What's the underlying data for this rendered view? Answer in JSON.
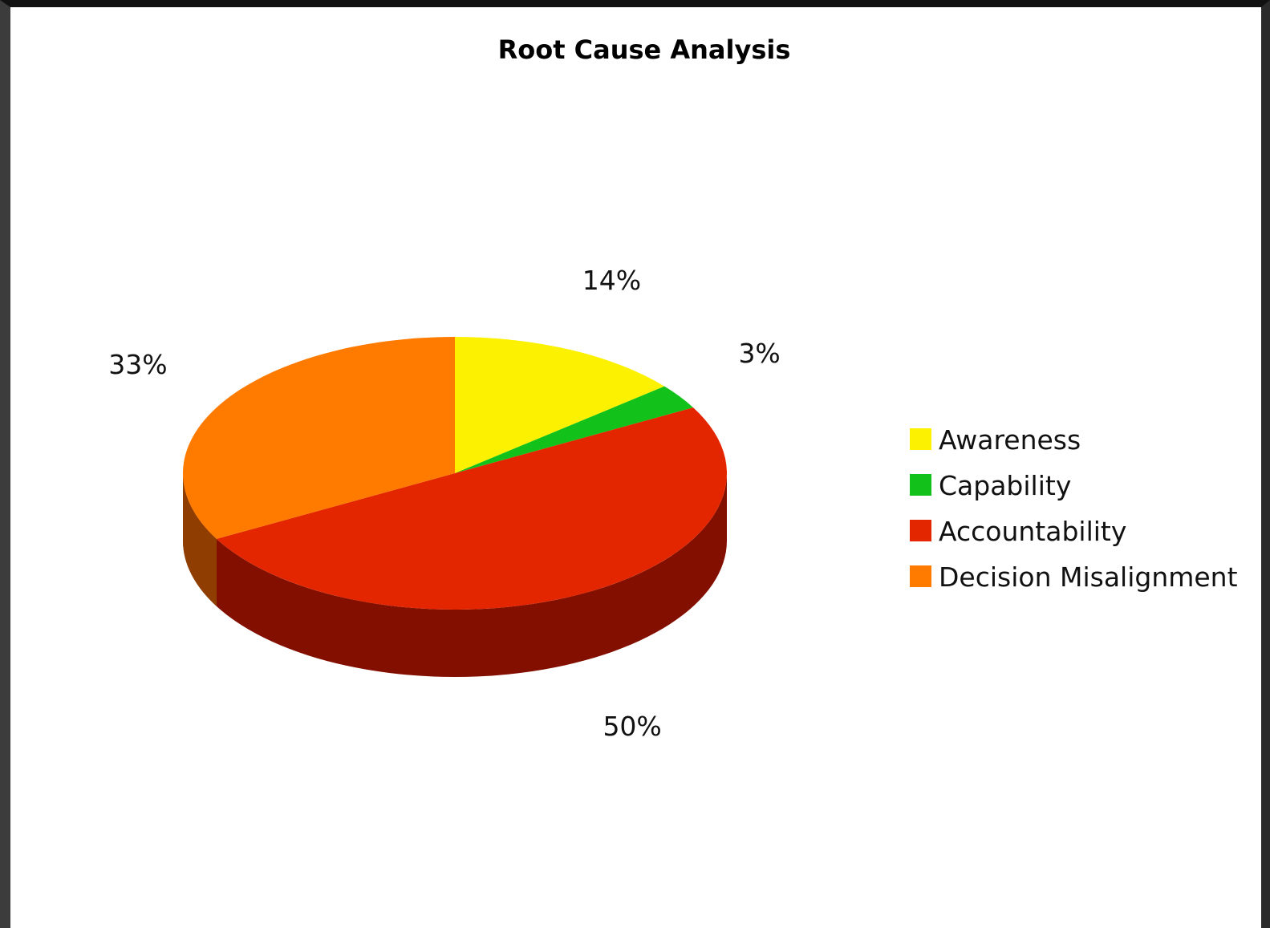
{
  "chart_data": {
    "type": "pie",
    "style": "3d",
    "title": "Root Cause Analysis",
    "series": [
      {
        "name": "Awareness",
        "value": 14,
        "label": "14%",
        "color": "#fbf100",
        "side_color": "#9c9200"
      },
      {
        "name": "Capability",
        "value": 3,
        "label": "3%",
        "color": "#12c11a",
        "side_color": "#0b7410"
      },
      {
        "name": "Accountability",
        "value": 50,
        "label": "50%",
        "color": "#e42600",
        "side_color": "#830f00"
      },
      {
        "name": "Decision Misalignment",
        "value": 33,
        "label": "33%",
        "color": "#ff7b00",
        "side_color": "#8f3d00"
      }
    ],
    "legend_position": "right"
  }
}
